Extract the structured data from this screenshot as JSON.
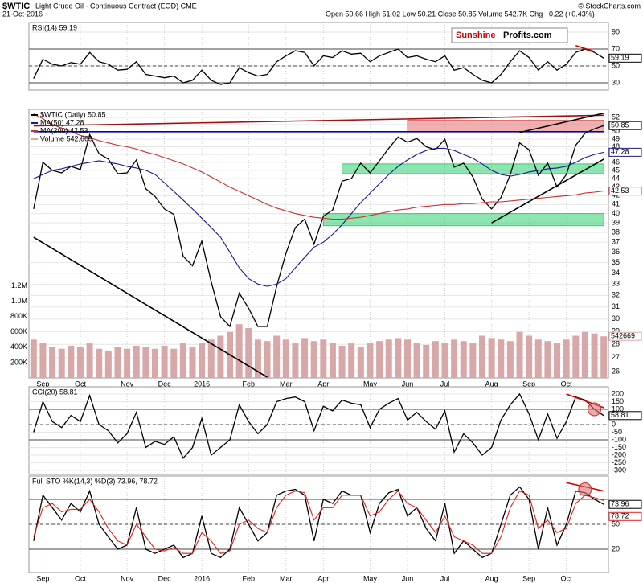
{
  "header": {
    "symbol": "$WTIC",
    "name": "Light Crude Oil - Continuous Contract (EOD) CME",
    "date": "21-Oct-2016",
    "quote": "Open 50.66 High 51.02 Low 50.21 Close 50.85 Volume 542.7K Chg +0.22 (+0.43%)",
    "credit": "© StockCharts.com",
    "logo_red": "Sunshine",
    "logo_black": "Profits.com"
  },
  "chart_data": [
    {
      "type": "line",
      "title": "RSI(14) 59.19",
      "ylim": [
        21.4,
        101.4
      ],
      "yticks": [
        30,
        50,
        70,
        90
      ],
      "ref_lines": [
        70,
        50,
        30
      ],
      "lines": [
        {
          "x": [
            58,
            60
          ],
          "y": [
            74,
            67
          ],
          "color": "#d00000"
        }
      ],
      "series": [
        {
          "color": "#000000",
          "values": [
            35,
            58,
            52,
            50,
            54,
            52,
            66,
            55,
            52,
            45,
            46,
            55,
            40,
            38,
            36,
            38,
            30,
            33,
            45,
            33,
            28,
            30,
            48,
            42,
            38,
            40,
            55,
            62,
            68,
            66,
            50,
            62,
            60,
            68,
            64,
            65,
            55,
            62,
            66,
            70,
            60,
            62,
            58,
            55,
            62,
            45,
            48,
            40,
            33,
            30,
            40,
            55,
            68,
            60,
            45,
            55,
            45,
            52,
            66,
            70,
            66,
            59.19
          ]
        }
      ]
    },
    {
      "type": "line",
      "log": true,
      "ylim": [
        25.55,
        53.15
      ],
      "yticks": [
        26,
        27,
        28,
        29,
        30,
        31,
        32,
        33,
        34,
        35,
        36,
        37,
        38,
        39,
        40,
        41,
        42,
        43,
        44,
        45,
        46,
        47,
        48,
        49,
        50,
        51,
        52
      ],
      "y2lim": [
        0,
        3500000
      ],
      "y2ticks": [
        {
          "value": 200000,
          "label": "200K"
        },
        {
          "value": 400000,
          "label": "400K"
        },
        {
          "value": 600000,
          "label": "600K"
        },
        {
          "value": 800000,
          "label": "800K"
        },
        {
          "value": 1000000,
          "label": "1.0M"
        },
        {
          "value": 1200000,
          "label": "1.2M"
        }
      ],
      "categories": [
        null,
        "Sep",
        null,
        null,
        null,
        "Oct",
        null,
        null,
        null,
        null,
        "Nov",
        null,
        null,
        null,
        "Dec",
        null,
        null,
        null,
        "2016",
        null,
        null,
        null,
        null,
        "Feb",
        null,
        null,
        null,
        "Mar",
        null,
        null,
        null,
        "Apr",
        null,
        null,
        null,
        null,
        "May",
        null,
        null,
        null,
        "Jun",
        null,
        null,
        null,
        "Jul",
        null,
        null,
        null,
        null,
        "Aug",
        null,
        null,
        null,
        "Sep",
        null,
        null,
        null,
        "Oct",
        null,
        null,
        null,
        null
      ],
      "zones": [
        {
          "x": [
            40,
            61
          ],
          "y": [
            50.0,
            51.6
          ],
          "color": "#e07070"
        },
        {
          "x": [
            33,
            61
          ],
          "y": [
            44.6,
            45.8
          ],
          "color": "#30d070"
        },
        {
          "x": [
            31,
            61
          ],
          "y": [
            38.7,
            40.0
          ],
          "color": "#30d070"
        }
      ],
      "lines": [
        {
          "x": [
            0,
            61
          ],
          "y": [
            50.0,
            50.0
          ],
          "color": "#0000c0"
        },
        {
          "x": [
            0,
            61
          ],
          "y": [
            50.8,
            52.3
          ],
          "color": "#a01010"
        },
        {
          "x": [
            0,
            25
          ],
          "y": [
            37.5,
            25.6
          ],
          "color": "#000000"
        },
        {
          "x": [
            49,
            61
          ],
          "y": [
            39.0,
            46.4
          ],
          "color": "#000000"
        },
        {
          "x": [
            52,
            61
          ],
          "y": [
            49.9,
            52.6
          ],
          "color": "#000000"
        }
      ],
      "series": [
        {
          "name": "$WTIC (Daily) 50.85",
          "color": "#000000",
          "values": [
            40.5,
            46.0,
            45.0,
            44.7,
            45.5,
            45.1,
            49.6,
            47.1,
            46.4,
            44.6,
            44.7,
            46.3,
            42.8,
            41.9,
            40.5,
            39.9,
            35.6,
            34.7,
            37.1,
            33.2,
            30.2,
            29.4,
            32.2,
            30.9,
            29.4,
            29.4,
            32.8,
            35.9,
            38.5,
            39.4,
            36.8,
            39.7,
            40.4,
            43.7,
            44.0,
            45.9,
            44.7,
            46.2,
            47.8,
            49.3,
            48.6,
            49.1,
            48.0,
            47.6,
            49.0,
            45.4,
            45.9,
            44.2,
            41.6,
            40.5,
            41.8,
            44.5,
            48.5,
            47.6,
            44.4,
            45.9,
            43.0,
            44.5,
            48.2,
            49.8,
            50.4,
            50.85
          ]
        },
        {
          "name": "MA(50) 47.28",
          "color": "#1a1a8c",
          "values": [
            44,
            44.5,
            45,
            45.2,
            45.5,
            45.8,
            46,
            46.2,
            46,
            45.8,
            45.5,
            45.3,
            45,
            44.5,
            43.5,
            42.5,
            41.5,
            40.5,
            39.5,
            38.5,
            37.5,
            36,
            34.5,
            33.5,
            33,
            32.8,
            33,
            33.5,
            34.5,
            35.5,
            36.5,
            37,
            37.8,
            38.8,
            40,
            41.2,
            42.3,
            43.4,
            44.5,
            45.5,
            46.3,
            47,
            47.5,
            47.8,
            47.8,
            47.5,
            47,
            46.5,
            45.8,
            45,
            44.5,
            44.3,
            44.5,
            44.8,
            45,
            45.2,
            45.3,
            45.5,
            46,
            46.6,
            47,
            47.28
          ]
        },
        {
          "name": "MA(200) 42.53",
          "color": "#c83232",
          "values": [
            52.5,
            51.8,
            51,
            50.5,
            50,
            49.5,
            49.2,
            48.8,
            48.5,
            48.2,
            48,
            47.7,
            47.3,
            47,
            46.6,
            46.2,
            45.8,
            45.3,
            44.8,
            44.2,
            43.6,
            43,
            42.5,
            42,
            41.5,
            41,
            40.6,
            40.3,
            40,
            39.8,
            39.6,
            39.5,
            39.4,
            39.4,
            39.5,
            39.6,
            39.8,
            40,
            40.2,
            40.4,
            40.5,
            40.7,
            40.8,
            40.9,
            41,
            41,
            41.1,
            41.1,
            41.2,
            41.3,
            41.3,
            41.4,
            41.5,
            41.6,
            41.7,
            41.8,
            41.9,
            42,
            42.1,
            42.3,
            42.4,
            42.53
          ]
        },
        {
          "name": "Volume 542,669",
          "type": "bar",
          "axis": "y2",
          "color": "#d8a8a8",
          "values": [
            500000,
            450000,
            400000,
            380000,
            420000,
            400000,
            450000,
            380000,
            350000,
            400000,
            380000,
            420000,
            400000,
            380000,
            420000,
            380000,
            450000,
            400000,
            450000,
            500000,
            550000,
            600000,
            700000,
            650000,
            500000,
            480000,
            550000,
            500000,
            450000,
            520000,
            480000,
            500000,
            450000,
            420000,
            450000,
            400000,
            450000,
            480000,
            500000,
            520000,
            500000,
            450000,
            430000,
            480000,
            450000,
            500000,
            480000,
            450000,
            550000,
            520000,
            500000,
            480000,
            600000,
            550000,
            500000,
            480000,
            450000,
            500000,
            550000,
            600000,
            580000,
            542669
          ]
        }
      ]
    },
    {
      "type": "line",
      "title": "CCI(20) 58.81",
      "ylim": [
        -326,
        247
      ],
      "yticks": [
        -300,
        -250,
        -200,
        -150,
        -100,
        -50,
        0,
        50,
        100,
        150,
        200
      ],
      "ref_lines": [
        100,
        0,
        -100
      ],
      "lines": [
        {
          "x": [
            57,
            61
          ],
          "y": [
            200,
            110
          ],
          "color": "#d00000"
        }
      ],
      "circles": [
        {
          "x": 60,
          "y": 100,
          "color": "#e07070"
        }
      ],
      "series": [
        {
          "color": "#000000",
          "values": [
            -50,
            150,
            20,
            -20,
            60,
            20,
            190,
            0,
            -40,
            -120,
            -60,
            80,
            -150,
            -110,
            -130,
            -80,
            -220,
            -150,
            40,
            -200,
            -150,
            -100,
            130,
            20,
            -60,
            0,
            150,
            170,
            180,
            150,
            -40,
            120,
            90,
            160,
            140,
            130,
            -20,
            100,
            140,
            170,
            30,
            80,
            20,
            -30,
            90,
            -180,
            -60,
            -120,
            -200,
            -150,
            30,
            130,
            200,
            70,
            -100,
            70,
            -90,
            20,
            180,
            160,
            100,
            58.81
          ]
        }
      ]
    },
    {
      "type": "line",
      "title": "Full STO %K(14,3) %D(3) 73.96, 78.72",
      "ylim": [
        -8,
        108
      ],
      "yticks": [
        20,
        50
      ],
      "ref_lines": [
        80,
        50,
        20
      ],
      "categories": [
        null,
        "Sep",
        null,
        null,
        null,
        "Oct",
        null,
        null,
        null,
        null,
        "Nov",
        null,
        null,
        null,
        "Dec",
        null,
        null,
        null,
        "2016",
        null,
        null,
        null,
        null,
        "Feb",
        null,
        null,
        null,
        "Mar",
        null,
        null,
        null,
        "Apr",
        null,
        null,
        null,
        null,
        "May",
        null,
        null,
        null,
        "Jun",
        null,
        null,
        null,
        "Jul",
        null,
        null,
        null,
        null,
        "Aug",
        null,
        null,
        null,
        "Sep",
        null,
        null,
        null,
        "Oct",
        null,
        null,
        null,
        null
      ],
      "lines": [
        {
          "x": [
            57,
            61
          ],
          "y": [
            100,
            90
          ],
          "color": "#d00000"
        }
      ],
      "circles": [
        {
          "x": 59,
          "y": 92,
          "color": "#e07070"
        }
      ],
      "series": [
        {
          "color": "#000000",
          "values": [
            30,
            85,
            70,
            55,
            75,
            65,
            90,
            50,
            35,
            20,
            25,
            70,
            20,
            15,
            20,
            25,
            10,
            15,
            60,
            15,
            10,
            20,
            70,
            50,
            30,
            40,
            85,
            90,
            92,
            85,
            30,
            80,
            75,
            90,
            85,
            85,
            40,
            75,
            88,
            92,
            60,
            70,
            45,
            30,
            75,
            15,
            30,
            20,
            10,
            15,
            50,
            85,
            95,
            80,
            20,
            70,
            25,
            50,
            90,
            88,
            80,
            73.96
          ]
        },
        {
          "color": "#e02020",
          "values": [
            35,
            70,
            75,
            65,
            68,
            68,
            80,
            65,
            45,
            30,
            25,
            50,
            35,
            20,
            18,
            22,
            15,
            15,
            40,
            30,
            15,
            18,
            50,
            55,
            45,
            40,
            70,
            85,
            90,
            88,
            55,
            70,
            70,
            85,
            85,
            85,
            60,
            65,
            80,
            90,
            75,
            70,
            55,
            40,
            60,
            35,
            30,
            25,
            15,
            15,
            35,
            70,
            90,
            85,
            45,
            55,
            40,
            45,
            75,
            85,
            82,
            78.72
          ]
        }
      ]
    }
  ]
}
